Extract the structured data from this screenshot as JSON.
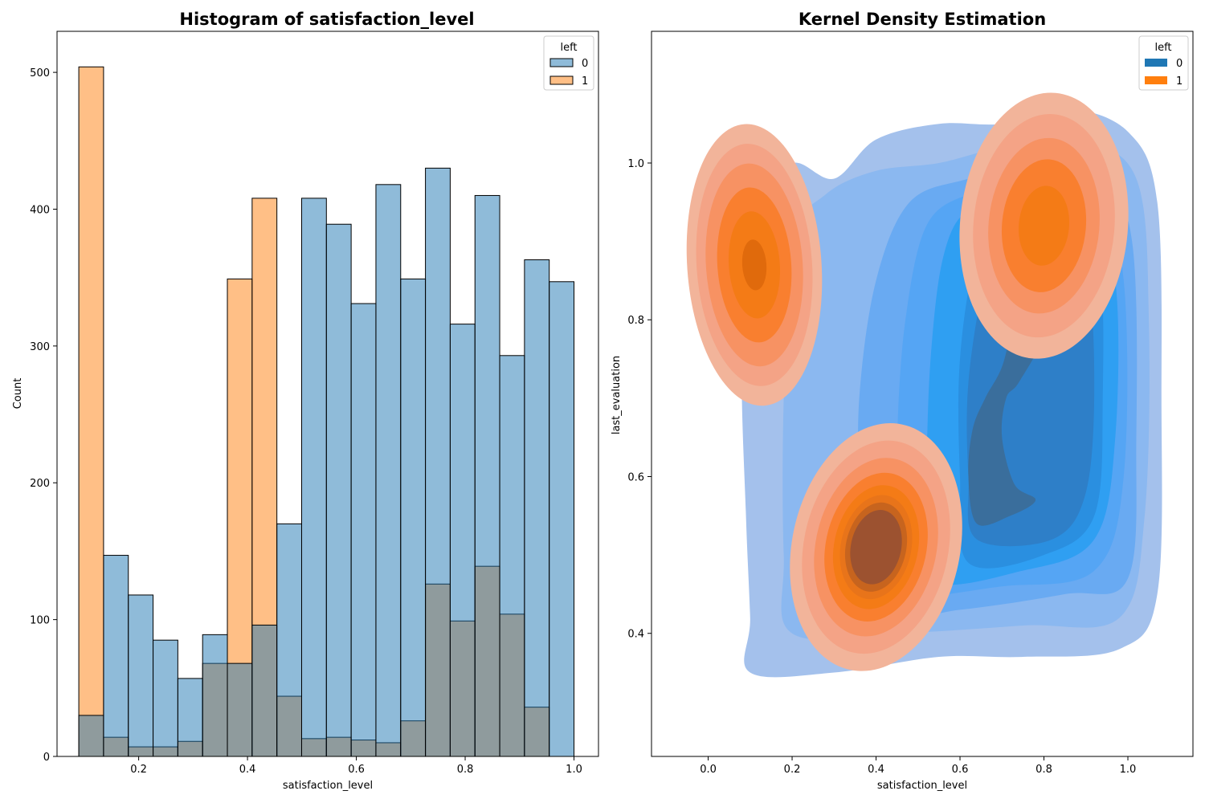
{
  "chart_data": [
    {
      "type": "bar",
      "title": "Histogram of satisfaction_level",
      "xlabel": "satisfaction_level",
      "ylabel": "Count",
      "xlim": [
        0.05,
        1.045
      ],
      "ylim": [
        0,
        530
      ],
      "xticks": [
        0.2,
        0.4,
        0.6,
        0.8,
        1.0
      ],
      "xtick_labels": [
        "0.2",
        "0.4",
        "0.6",
        "0.8",
        "1.0"
      ],
      "yticks": [
        0,
        100,
        200,
        300,
        400,
        500
      ],
      "ytick_labels": [
        "0",
        "100",
        "200",
        "300",
        "400",
        "500"
      ],
      "bin_start": 0.09,
      "bin_width": 0.0455,
      "legend": {
        "title": "left",
        "placement": "top-right",
        "entries": [
          "0",
          "1"
        ]
      },
      "colors": {
        "0": "#1f77b4",
        "1": "#ff7f0e",
        "overlap": "#8e989a"
      },
      "series": [
        {
          "name": "0",
          "values": [
            30,
            147,
            118,
            85,
            57,
            89,
            68,
            96,
            170,
            408,
            389,
            331,
            418,
            349,
            430,
            316,
            410,
            293,
            363,
            347
          ]
        },
        {
          "name": "1",
          "values": [
            504,
            14,
            7,
            7,
            11,
            68,
            349,
            408,
            44,
            13,
            14,
            12,
            10,
            26,
            126,
            99,
            139,
            104,
            36,
            0
          ]
        }
      ]
    },
    {
      "type": "area",
      "subtype": "kde-2d-filled",
      "title": "Kernel Density Estimation",
      "xlabel": "satisfaction_level",
      "ylabel": "last_evaluation",
      "xlim": [
        -0.135,
        1.155
      ],
      "ylim": [
        0.243,
        1.168
      ],
      "xticks": [
        0.0,
        0.2,
        0.4,
        0.6,
        0.8,
        1.0
      ],
      "xtick_labels": [
        "0.0",
        "0.2",
        "0.4",
        "0.6",
        "0.8",
        "1.0"
      ],
      "yticks": [
        0.4,
        0.6,
        0.8,
        1.0
      ],
      "ytick_labels": [
        "0.4",
        "0.6",
        "0.8",
        "1.0"
      ],
      "legend": {
        "title": "left",
        "placement": "top-right",
        "entries": [
          "0",
          "1"
        ]
      },
      "colors": {
        "0": "#1f77b4",
        "1": "#ff7f0e"
      },
      "series": [
        {
          "name": "0",
          "levels": [
            {
              "color": "#a4c1ec",
              "points": [
                [
                  0.1,
                  0.35
                ],
                [
                  0.3,
                  0.35
                ],
                [
                  0.55,
                  0.37
                ],
                [
                  0.75,
                  0.37
                ],
                [
                  0.98,
                  0.38
                ],
                [
                  1.07,
                  0.45
                ],
                [
                  1.08,
                  0.7
                ],
                [
                  1.07,
                  0.95
                ],
                [
                  1.0,
                  1.04
                ],
                [
                  0.85,
                  1.07
                ],
                [
                  0.7,
                  1.05
                ],
                [
                  0.55,
                  1.05
                ],
                [
                  0.4,
                  1.03
                ],
                [
                  0.3,
                  0.98
                ],
                [
                  0.2,
                  1.0
                ],
                [
                  0.1,
                  0.95
                ],
                [
                  0.08,
                  0.75
                ],
                [
                  0.09,
                  0.55
                ],
                [
                  0.1,
                  0.42
                ]
              ]
            },
            {
              "color": "#8bb8f0",
              "points": [
                [
                  0.2,
                  0.4
                ],
                [
                  0.45,
                  0.4
                ],
                [
                  0.75,
                  0.41
                ],
                [
                  0.98,
                  0.42
                ],
                [
                  1.04,
                  0.55
                ],
                [
                  1.05,
                  0.8
                ],
                [
                  1.02,
                  0.98
                ],
                [
                  0.88,
                  1.03
                ],
                [
                  0.7,
                  1.02
                ],
                [
                  0.55,
                  1.0
                ],
                [
                  0.4,
                  0.99
                ],
                [
                  0.28,
                  0.96
                ],
                [
                  0.2,
                  0.9
                ],
                [
                  0.18,
                  0.7
                ],
                [
                  0.18,
                  0.5
                ]
              ]
            },
            {
              "color": "#69aaf2",
              "points": [
                [
                  0.36,
                  0.42
                ],
                [
                  0.6,
                  0.43
                ],
                [
                  0.85,
                  0.45
                ],
                [
                  1.0,
                  0.47
                ],
                [
                  1.02,
                  0.65
                ],
                [
                  1.01,
                  0.9
                ],
                [
                  0.93,
                  0.99
                ],
                [
                  0.78,
                  1.0
                ],
                [
                  0.62,
                  0.98
                ],
                [
                  0.48,
                  0.95
                ],
                [
                  0.4,
                  0.85
                ],
                [
                  0.36,
                  0.7
                ],
                [
                  0.36,
                  0.55
                ]
              ]
            },
            {
              "color": "#55a5f4",
              "points": [
                [
                  0.45,
                  0.45
                ],
                [
                  0.7,
                  0.46
                ],
                [
                  0.92,
                  0.48
                ],
                [
                  0.99,
                  0.6
                ],
                [
                  0.99,
                  0.85
                ],
                [
                  0.92,
                  0.96
                ],
                [
                  0.75,
                  0.97
                ],
                [
                  0.62,
                  0.96
                ],
                [
                  0.52,
                  0.92
                ],
                [
                  0.47,
                  0.8
                ],
                [
                  0.45,
                  0.65
                ],
                [
                  0.45,
                  0.52
                ]
              ]
            },
            {
              "color": "#2f9ff2",
              "points": [
                [
                  0.52,
                  0.47
                ],
                [
                  0.75,
                  0.48
                ],
                [
                  0.92,
                  0.52
                ],
                [
                  0.97,
                  0.65
                ],
                [
                  0.97,
                  0.85
                ],
                [
                  0.9,
                  0.94
                ],
                [
                  0.75,
                  0.95
                ],
                [
                  0.62,
                  0.94
                ],
                [
                  0.56,
                  0.88
                ],
                [
                  0.53,
                  0.75
                ],
                [
                  0.52,
                  0.6
                ]
              ]
            },
            {
              "color": "#2a8fe0",
              "points": [
                [
                  0.62,
                  0.49
                ],
                [
                  0.8,
                  0.5
                ],
                [
                  0.92,
                  0.55
                ],
                [
                  0.94,
                  0.7
                ],
                [
                  0.93,
                  0.88
                ],
                [
                  0.85,
                  0.93
                ],
                [
                  0.72,
                  0.93
                ],
                [
                  0.64,
                  0.88
                ],
                [
                  0.6,
                  0.75
                ],
                [
                  0.6,
                  0.6
                ]
              ]
            },
            {
              "color": "#2e7fc8",
              "points": [
                [
                  0.64,
                  0.52
                ],
                [
                  0.82,
                  0.52
                ],
                [
                  0.9,
                  0.58
                ],
                [
                  0.92,
                  0.72
                ],
                [
                  0.9,
                  0.86
                ],
                [
                  0.82,
                  0.9
                ],
                [
                  0.72,
                  0.9
                ],
                [
                  0.66,
                  0.85
                ],
                [
                  0.62,
                  0.72
                ],
                [
                  0.62,
                  0.6
                ]
              ]
            },
            {
              "color": "#3a6e9c",
              "points": [
                [
                  0.64,
                  0.54
                ],
                [
                  0.72,
                  0.55
                ],
                [
                  0.78,
                  0.57
                ],
                [
                  0.73,
                  0.59
                ],
                [
                  0.7,
                  0.65
                ],
                [
                  0.71,
                  0.7
                ],
                [
                  0.74,
                  0.72
                ],
                [
                  0.8,
                  0.78
                ],
                [
                  0.82,
                  0.85
                ],
                [
                  0.78,
                  0.86
                ],
                [
                  0.73,
                  0.8
                ],
                [
                  0.7,
                  0.74
                ],
                [
                  0.66,
                  0.7
                ],
                [
                  0.63,
                  0.66
                ],
                [
                  0.62,
                  0.6
                ]
              ]
            }
          ]
        },
        {
          "name": "1",
          "clusters": [
            {
              "center": [
                0.11,
                0.87
              ],
              "radius": [
                0.16,
                0.18
              ],
              "rotation": -4,
              "levels": [
                1.0,
                0.86,
                0.72,
                0.55,
                0.38,
                0.18
              ],
              "colors": [
                "#f2b49a",
                "#f4a386",
                "#f79263",
                "#f97f2f",
                "#f47b16",
                "#e06a0c"
              ]
            },
            {
              "center": [
                0.4,
                0.51
              ],
              "radius": [
                0.2,
                0.16
              ],
              "rotation": 12,
              "levels": [
                1.0,
                0.86,
                0.72,
                0.6,
                0.5,
                0.42,
                0.36,
                0.3
              ],
              "colors": [
                "#f2b49a",
                "#f4a386",
                "#f79263",
                "#f97f2f",
                "#f47b16",
                "#e8741a",
                "#c7641e",
                "#9c5230"
              ]
            },
            {
              "center": [
                0.8,
                0.92
              ],
              "radius": [
                0.2,
                0.17
              ],
              "rotation": 5,
              "levels": [
                1.0,
                0.84,
                0.66,
                0.5,
                0.3
              ],
              "colors": [
                "#f2b49a",
                "#f4a386",
                "#f79263",
                "#f97f2f",
                "#f47b16"
              ]
            }
          ]
        }
      ]
    }
  ]
}
